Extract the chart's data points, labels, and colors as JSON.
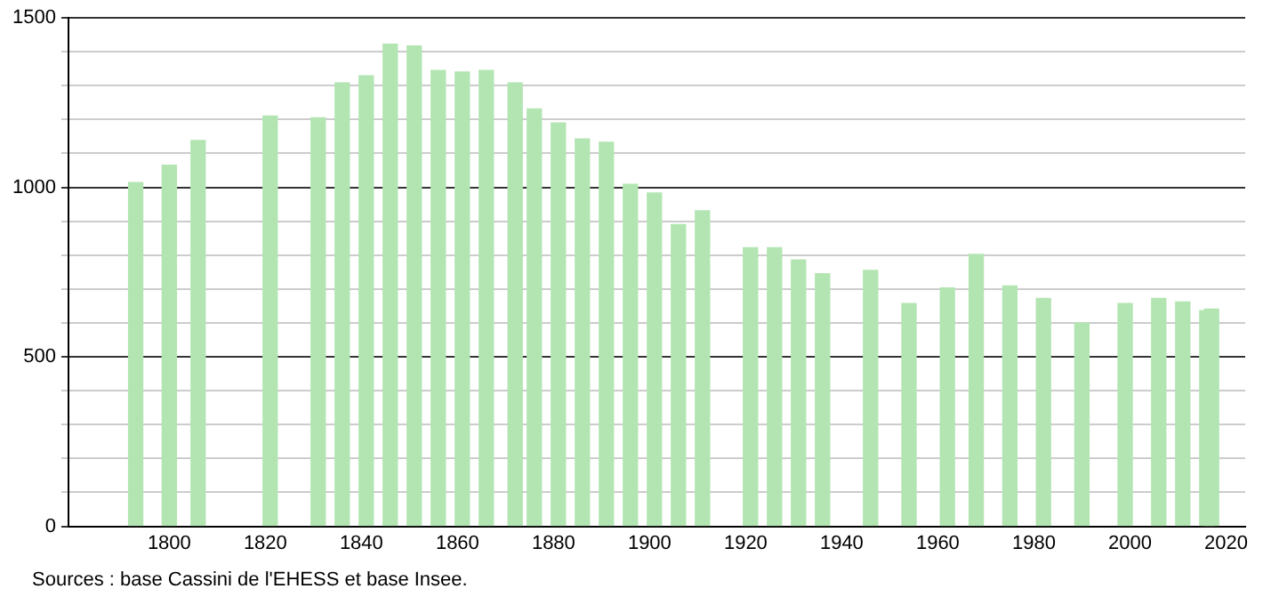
{
  "chart_data": {
    "type": "bar",
    "x": [
      1793,
      1800,
      1806,
      1821,
      1831,
      1836,
      1841,
      1846,
      1851,
      1856,
      1861,
      1866,
      1872,
      1876,
      1881,
      1886,
      1891,
      1896,
      1901,
      1906,
      1911,
      1921,
      1926,
      1931,
      1936,
      1946,
      1954,
      1962,
      1968,
      1975,
      1982,
      1990,
      1999,
      2006,
      2011,
      2016,
      2017
    ],
    "values": [
      1014,
      1065,
      1138,
      1210,
      1205,
      1308,
      1329,
      1422,
      1417,
      1345,
      1340,
      1345,
      1308,
      1231,
      1190,
      1143,
      1133,
      1009,
      983,
      890,
      931,
      822,
      822,
      786,
      745,
      755,
      657,
      703,
      802,
      709,
      672,
      600,
      657,
      672,
      662,
      636,
      641
    ],
    "color": "#b3e5b3",
    "xlim": [
      1779,
      2024
    ],
    "xticks": [
      1800,
      1820,
      1840,
      1860,
      1880,
      1900,
      1920,
      1940,
      1960,
      1980,
      2000,
      2020
    ],
    "ylim": [
      0,
      1500
    ],
    "yticks": [
      0,
      {
        "value": 100,
        "label": null
      },
      {
        "value": 200,
        "label": null
      },
      {
        "value": 300,
        "label": null
      },
      {
        "value": 400,
        "label": null
      },
      500,
      {
        "value": 600,
        "label": null
      },
      {
        "value": 700,
        "label": null
      },
      {
        "value": 800,
        "label": null
      },
      {
        "value": 900,
        "label": null
      },
      1000,
      {
        "value": 1100,
        "label": null
      },
      {
        "value": 1200,
        "label": null
      },
      {
        "value": 1300,
        "label": null
      },
      {
        "value": 1400,
        "label": null
      },
      1500
    ],
    "grid": "y",
    "legend": false,
    "annotations": [
      "Sources : base Cassini de l'EHESS et base Insee."
    ]
  }
}
